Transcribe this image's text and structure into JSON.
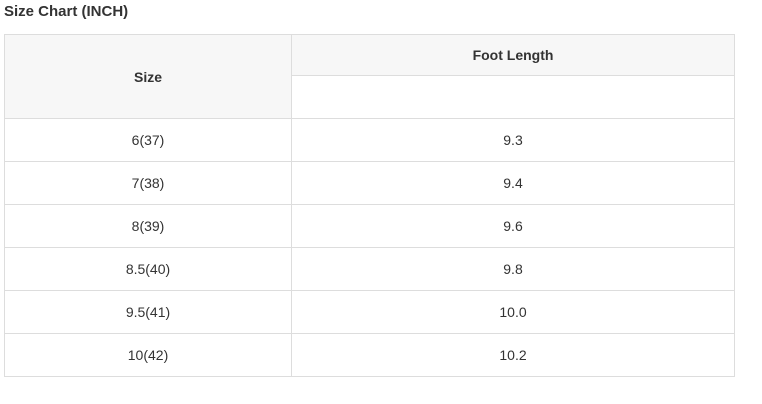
{
  "page": {
    "title": "Size Chart (INCH)"
  },
  "table": {
    "columns": {
      "size_label": "Size",
      "foot_length_label": "Foot Length"
    },
    "rows": [
      {
        "size": "6(37)",
        "foot_length": "9.3"
      },
      {
        "size": "7(38)",
        "foot_length": "9.4"
      },
      {
        "size": "8(39)",
        "foot_length": "9.6"
      },
      {
        "size": "8.5(40)",
        "foot_length": "9.8"
      },
      {
        "size": "9.5(41)",
        "foot_length": "10.0"
      },
      {
        "size": "10(42)",
        "foot_length": "10.2"
      }
    ],
    "colors": {
      "header_bg": "#f7f7f7",
      "border": "#dddddd",
      "text": "#333333"
    }
  }
}
